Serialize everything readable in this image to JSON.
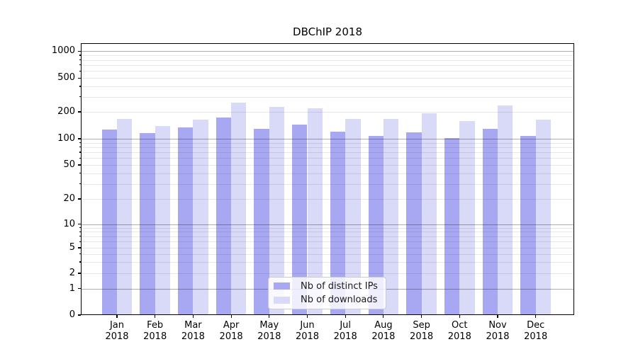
{
  "chart_data": {
    "type": "bar",
    "title": "DBChIP 2018",
    "categories": [
      "Jan 2018",
      "Feb 2018",
      "Mar 2018",
      "Apr 2018",
      "May 2018",
      "Jun 2018",
      "Jul 2018",
      "Aug 2018",
      "Sep 2018",
      "Oct 2018",
      "Nov 2018",
      "Dec 2018"
    ],
    "series": [
      {
        "name": "Nb of distinct IPs",
        "color": "#a8a8f2",
        "values": [
          127,
          115,
          133,
          172,
          129,
          145,
          120,
          108,
          118,
          102,
          128,
          108
        ]
      },
      {
        "name": "Nb of downloads",
        "color": "#d9d9f8",
        "values": [
          168,
          140,
          164,
          255,
          230,
          220,
          168,
          168,
          193,
          158,
          240,
          164
        ]
      }
    ],
    "yscale": "symlog",
    "yticks": [
      0,
      1,
      2,
      5,
      10,
      20,
      50,
      100,
      200,
      500,
      1000
    ],
    "ylim": [
      0,
      1250
    ],
    "xlabel": "",
    "ylabel": "",
    "grid": "major-and-minor",
    "legend_position": "lower-center-inside"
  }
}
